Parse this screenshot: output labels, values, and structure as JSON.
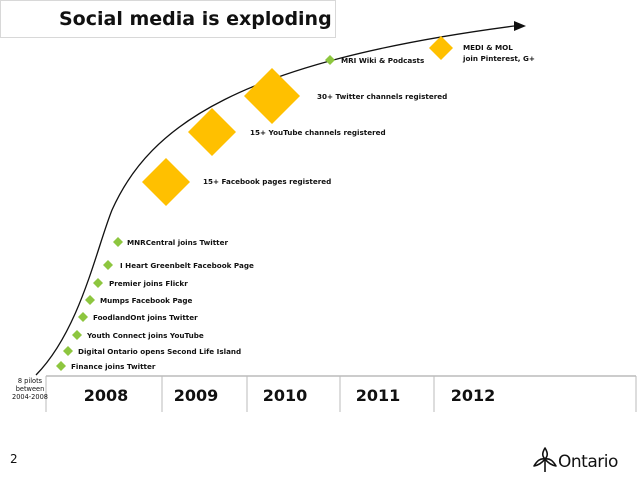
{
  "title": "Social media is exploding",
  "pilots_note": [
    "8 pilots",
    "between",
    "2004-2008"
  ],
  "years": [
    "2008",
    "2009",
    "2010",
    "2011",
    "2012"
  ],
  "small_events": [
    {
      "label": "Finance joins Twitter"
    },
    {
      "label": "Digital Ontario opens Second Life Island"
    },
    {
      "label": "Youth Connect joins YouTube"
    },
    {
      "label": "FoodlandOnt joins Twitter"
    },
    {
      "label": "Mumps Facebook Page"
    },
    {
      "label": "Premier joins Flickr"
    },
    {
      "label": "I Heart Greenbelt Facebook Page"
    },
    {
      "label": "MNRCentral joins Twitter"
    },
    {
      "label": "MRI Wiki & Podcasts"
    }
  ],
  "big_events": [
    {
      "label": "15+ Facebook pages registered"
    },
    {
      "label": "15+ YouTube channels registered"
    },
    {
      "label": "30+ Twitter channels registered"
    }
  ],
  "medium_events": [
    {
      "label_lines": [
        "MEDI & MOL",
        "join Pinterest, G+"
      ]
    }
  ],
  "colors": {
    "small_diamond": "#8dc63f",
    "big_diamond": "#ffc000",
    "curve": "#111111",
    "axis": "#999999"
  },
  "footer": {
    "page_number": "2",
    "brand": "Ontario",
    "brand_icon": "trillium-icon"
  }
}
